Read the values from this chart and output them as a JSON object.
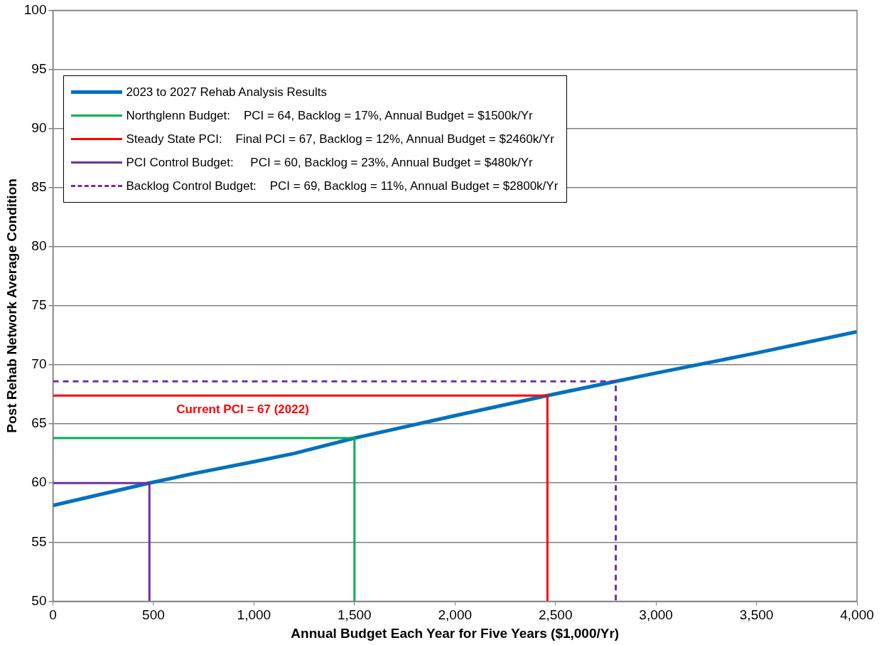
{
  "chart_data": {
    "type": "line",
    "xlabel": "Annual Budget Each Year for Five Years ($1,000/Yr)",
    "ylabel": "Post Rehab Network Average Condition",
    "series": [
      {
        "name": "2023 to 2027 Rehab Analysis Results",
        "color": "#0070c0",
        "x": [
          0,
          480,
          700,
          1000,
          1200,
          1500,
          2000,
          2460,
          2800,
          3000,
          3500,
          4000
        ],
        "values": [
          58.1,
          60.0,
          60.8,
          61.8,
          62.5,
          63.8,
          65.7,
          67.4,
          68.6,
          69.3,
          71.0,
          72.8
        ]
      },
      {
        "name": "Northglenn Budget:    PCI = 64, Backlog = 17%, Annual Budget = $1500k/Yr",
        "color": "#00b050",
        "x": [
          0,
          1500,
          1500
        ],
        "values": [
          63.8,
          63.8,
          50
        ]
      },
      {
        "name": "Steady State PCI:    Final PCI = 67, Backlog = 12%, Annual Budget = $2460k/Yr",
        "color": "#ff0000",
        "x": [
          0,
          2460,
          2460
        ],
        "values": [
          67.4,
          67.4,
          50
        ]
      },
      {
        "name": "PCI Control Budget:     PCI = 60, Backlog = 23%, Annual Budget = $480k/Yr",
        "color": "#7030a0",
        "x": [
          0,
          480,
          480
        ],
        "values": [
          60.0,
          60.0,
          50
        ]
      },
      {
        "name": "Backlog Control Budget:    PCI = 69, Backlog = 11%, Annual Budget = $2800k/Yr",
        "color": "#7030a0",
        "line_style": "dashed",
        "x": [
          0,
          2800,
          2800
        ],
        "values": [
          68.6,
          68.6,
          50
        ]
      }
    ],
    "xlim": [
      0,
      4000
    ],
    "xticks": [
      0,
      500,
      {
        "value": 1000,
        "label": "1,000"
      },
      {
        "value": 1500,
        "label": "1,500"
      },
      {
        "value": 2000,
        "label": "2,000"
      },
      {
        "value": 2500,
        "label": "2,500"
      },
      {
        "value": 3000,
        "label": "3,000"
      },
      {
        "value": 3500,
        "label": "3,500"
      },
      {
        "value": 4000,
        "label": "4,000"
      }
    ],
    "ylim": [
      50,
      100
    ],
    "yticks": [
      50,
      55,
      60,
      65,
      70,
      75,
      80,
      85,
      90,
      95,
      100
    ],
    "grid": "y",
    "legend": "top left",
    "marker": "none",
    "annotations": [
      "Current PCI = 67 (2022)"
    ]
  }
}
